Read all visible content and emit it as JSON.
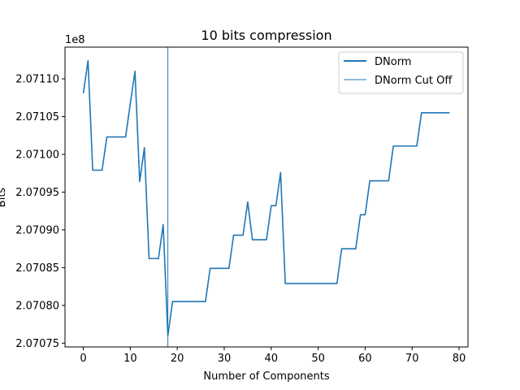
{
  "chart_data": {
    "type": "line",
    "title": "10 bits compression",
    "xlabel": "Number of Components",
    "ylabel": "Bits",
    "offset_text": "1e8",
    "xlim": [
      -3.9,
      81.9
    ],
    "ylim": [
      2.070745,
      2.071142
    ],
    "x_ticks": [
      0,
      10,
      20,
      30,
      40,
      50,
      60,
      70,
      80
    ],
    "y_ticks": [
      2.07075,
      2.0708,
      2.07085,
      2.0709,
      2.07095,
      2.071,
      2.07105,
      2.0711
    ],
    "y_tick_labels": [
      "2.07075",
      "2.07080",
      "2.07085",
      "2.07090",
      "2.07095",
      "2.07100",
      "2.07105",
      "2.07110"
    ],
    "legend_position": "upper right",
    "grid": false,
    "series": [
      {
        "name": "DNorm",
        "color": "#1f77b4",
        "x": [
          0,
          1,
          2,
          3,
          4,
          5,
          6,
          7,
          8,
          9,
          10,
          11,
          12,
          13,
          14,
          15,
          16,
          17,
          18,
          19,
          20,
          21,
          22,
          23,
          24,
          25,
          26,
          27,
          28,
          29,
          30,
          31,
          32,
          33,
          34,
          35,
          36,
          37,
          38,
          39,
          40,
          41,
          42,
          43,
          44,
          45,
          46,
          47,
          48,
          49,
          50,
          51,
          52,
          53,
          54,
          55,
          56,
          57,
          58,
          59,
          60,
          61,
          62,
          63,
          64,
          65,
          66,
          67,
          68,
          69,
          70,
          71,
          72,
          73,
          74,
          75,
          76,
          77,
          78
        ],
        "y": [
          2.071081,
          2.071124,
          2.070979,
          2.070979,
          2.070979,
          2.071023,
          2.071023,
          2.071023,
          2.071023,
          2.071023,
          2.071067,
          2.07111,
          2.070964,
          2.071009,
          2.070862,
          2.070862,
          2.070862,
          2.070907,
          2.07076,
          2.070805,
          2.070805,
          2.070805,
          2.070805,
          2.070805,
          2.070805,
          2.070805,
          2.070805,
          2.070849,
          2.070849,
          2.070849,
          2.070849,
          2.070849,
          2.070893,
          2.070893,
          2.070893,
          2.070937,
          2.070887,
          2.070887,
          2.070887,
          2.070887,
          2.070932,
          2.070932,
          2.070976,
          2.070829,
          2.070829,
          2.070829,
          2.070829,
          2.070829,
          2.070829,
          2.070829,
          2.070829,
          2.070829,
          2.070829,
          2.070829,
          2.070829,
          2.070875,
          2.070875,
          2.070875,
          2.070875,
          2.07092,
          2.07092,
          2.070965,
          2.070965,
          2.070965,
          2.070965,
          2.070965,
          2.071011,
          2.071011,
          2.071011,
          2.071011,
          2.071011,
          2.071011,
          2.071055,
          2.071055,
          2.071055,
          2.071055,
          2.071055,
          2.071055,
          2.071055
        ]
      }
    ],
    "cutoff": {
      "name": "DNorm Cut Off",
      "x": 18,
      "color": "#1f77b4"
    }
  }
}
